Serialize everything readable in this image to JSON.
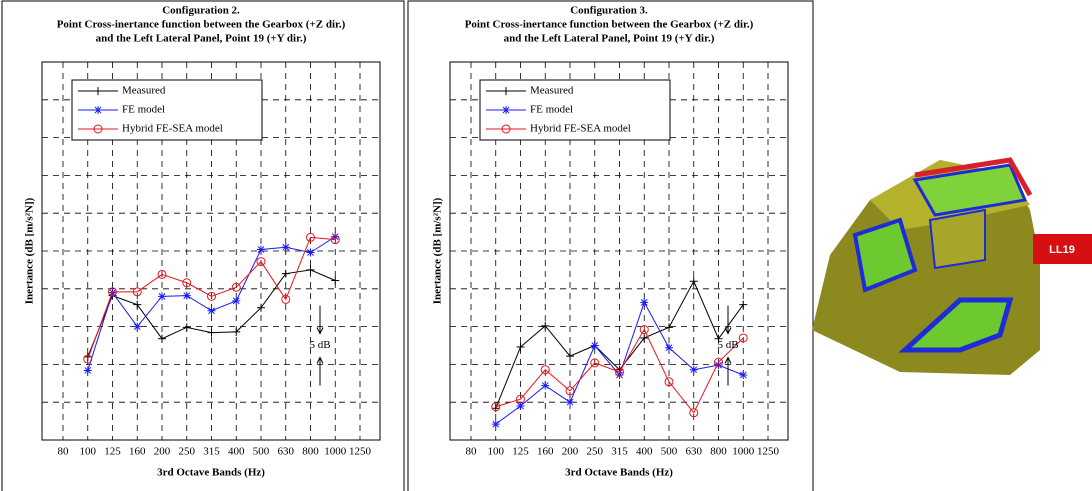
{
  "chart_data": [
    {
      "type": "line",
      "title": "Configuration 2.",
      "subtitle": [
        "Point Cross-inertance function between the Gearbox (+Z dir.)",
        "and the Left Lateral Panel, Point 19 (+Y dir.)"
      ],
      "ylabel": "Inertance (dB [m/s²N])",
      "xlabel": "3rd Octave Bands (Hz)",
      "annotation": "5 dB",
      "categories": [
        "80",
        "100",
        "125",
        "160",
        "200",
        "250",
        "315",
        "400",
        "500",
        "630",
        "800",
        "1000",
        "1250"
      ],
      "ylim": [
        0,
        50
      ],
      "yticks": [
        0,
        5,
        10,
        15,
        20,
        25,
        30,
        35,
        40,
        45,
        50
      ],
      "ytick_labels": false,
      "grid": true,
      "legend": "upper left",
      "series": [
        {
          "name": "Measured",
          "color": "#000000",
          "marker": "plus",
          "values": [
            null,
            11.0,
            19.1,
            17.9,
            13.4,
            14.9,
            14.2,
            14.3,
            17.5,
            22.0,
            22.5,
            21.1,
            null
          ]
        },
        {
          "name": "FE model",
          "color": "#1a1aff",
          "marker": "star",
          "values": [
            null,
            9.2,
            19.5,
            15.0,
            19.0,
            19.1,
            17.1,
            18.4,
            25.2,
            25.5,
            24.8,
            26.9,
            null
          ]
        },
        {
          "name": "Hybrid FE-SEA model",
          "color": "#e8151b",
          "marker": "circle",
          "values": [
            null,
            10.7,
            19.6,
            19.6,
            21.9,
            20.8,
            19.0,
            20.2,
            23.6,
            18.6,
            26.8,
            26.5,
            null
          ]
        }
      ]
    },
    {
      "type": "line",
      "title": "Configuration 3.",
      "subtitle": [
        "Point Cross-inertance function between the Gearbox (+Z dir.)",
        "and the Left Lateral Panel, Point 19 (+Y dir.)"
      ],
      "ylabel": "Inertance (dB [m/s²N])",
      "xlabel": "3rd Octave Bands (Hz)",
      "annotation": "5 dB",
      "categories": [
        "80",
        "100",
        "125",
        "160",
        "200",
        "250",
        "315",
        "400",
        "500",
        "630",
        "800",
        "1000",
        "1250"
      ],
      "ylim": [
        0,
        50
      ],
      "yticks": [
        0,
        5,
        10,
        15,
        20,
        25,
        30,
        35,
        40,
        45,
        50
      ],
      "ytick_labels": false,
      "grid": true,
      "legend": "upper left",
      "series": [
        {
          "name": "Measured",
          "color": "#000000",
          "marker": "plus",
          "values": [
            null,
            4.2,
            12.3,
            15.1,
            11.1,
            12.5,
            9.3,
            13.5,
            14.9,
            21.0,
            13.4,
            17.9,
            null
          ]
        },
        {
          "name": "FE model",
          "color": "#1a1aff",
          "marker": "star",
          "values": [
            null,
            2.1,
            4.5,
            7.2,
            5.0,
            12.5,
            8.6,
            18.2,
            12.2,
            9.3,
            9.9,
            8.6,
            null
          ]
        },
        {
          "name": "Hybrid FE-SEA model",
          "color": "#e8151b",
          "marker": "circle",
          "values": [
            null,
            4.4,
            5.4,
            9.3,
            6.5,
            10.2,
            9.0,
            14.6,
            7.7,
            3.6,
            10.3,
            13.5,
            null
          ]
        }
      ]
    }
  ],
  "image_label": "LL19"
}
